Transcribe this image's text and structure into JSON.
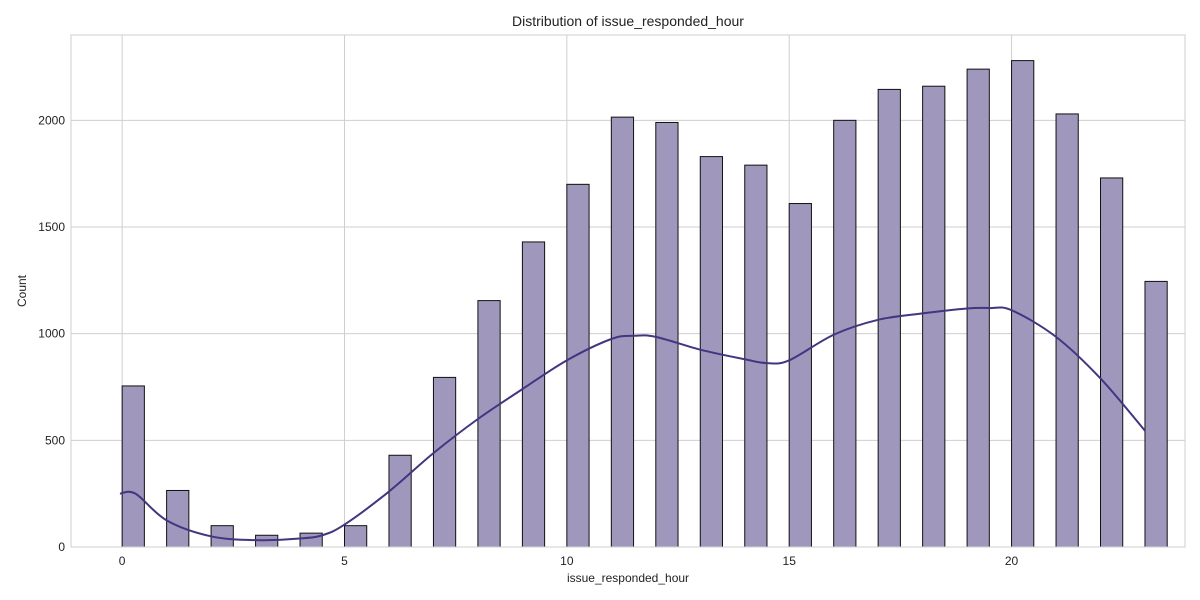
{
  "chart_data": {
    "type": "bar",
    "title": "Distribution of issue_responded_hour",
    "xlabel": "issue_responded_hour",
    "ylabel": "Count",
    "xlim": [
      -1.15,
      23.9
    ],
    "ylim": [
      0,
      2400
    ],
    "xticks": [
      0,
      5,
      10,
      15,
      20
    ],
    "yticks": [
      0,
      500,
      1000,
      1500,
      2000
    ],
    "grid": true,
    "bin_width": 0.5,
    "series": [
      {
        "x": [
          0,
          1,
          2,
          3,
          4,
          5,
          6,
          7,
          8,
          9,
          10,
          11,
          12,
          13,
          14,
          15,
          16,
          17,
          18,
          19,
          20,
          21,
          22,
          23
        ],
        "values": [
          755,
          265,
          100,
          55,
          65,
          100,
          430,
          795,
          1155,
          1430,
          1700,
          2015,
          1990,
          1830,
          1790,
          1610,
          2000,
          2145,
          2160,
          2240,
          2280,
          2030,
          1730,
          1245
        ]
      }
    ],
    "kde": {
      "x": [
        -0.05,
        0.3,
        1,
        2,
        3,
        4,
        4.5,
        5,
        6,
        7,
        8,
        9,
        10,
        11,
        11.5,
        12,
        13,
        14,
        14.5,
        15,
        16,
        17,
        18,
        19,
        19.5,
        20,
        21,
        22,
        23
      ],
      "y": [
        250,
        250,
        125,
        50,
        32,
        40,
        55,
        105,
        260,
        440,
        600,
        740,
        875,
        975,
        990,
        985,
        925,
        880,
        862,
        875,
        995,
        1065,
        1095,
        1118,
        1120,
        1110,
        985,
        790,
        545
      ]
    },
    "colors": {
      "bar_fill": "#a097bd",
      "bar_edge": "#111111",
      "kde_line": "#433580",
      "grid": "#cfcfcf"
    }
  }
}
